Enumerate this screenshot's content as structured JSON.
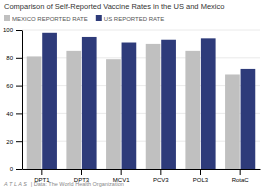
{
  "chart_data": {
    "type": "bar",
    "title": "Comparison of Self-Reported Vaccine Rates in the US and Mexico",
    "categories": [
      "DPT1",
      "DPT3",
      "MCV1",
      "PCV3",
      "POL3",
      "RotaC"
    ],
    "series": [
      {
        "name": "MEXICO REPORTED RATE",
        "color": "#c0c0c0",
        "values": [
          81,
          85,
          79,
          90,
          85,
          68
        ]
      },
      {
        "name": "US REPORTED RATE",
        "color": "#2e3b7a",
        "values": [
          98,
          95,
          91,
          93,
          94,
          72
        ]
      }
    ],
    "ylim": [
      0,
      100
    ],
    "yticks": [
      0,
      20,
      40,
      60,
      80,
      100
    ],
    "grid": true,
    "legend": "upper left",
    "annotations": [
      "A T L A S",
      "| Data: The World Health Organization"
    ]
  }
}
